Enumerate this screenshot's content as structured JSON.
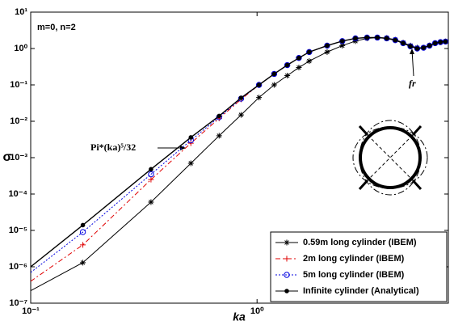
{
  "chart_data": {
    "type": "line",
    "x_label": "ka",
    "y_label": "σ",
    "xscale": "log",
    "yscale": "log",
    "xlim": [
      0.1,
      7
    ],
    "ylim": [
      1e-07,
      10
    ],
    "xticks": [
      {
        "value": 0.1,
        "label": "10⁻¹"
      },
      {
        "value": 1,
        "label": "10⁰"
      }
    ],
    "yticks": [
      {
        "value": 1e-07,
        "label": "10⁻⁷"
      },
      {
        "value": 1e-06,
        "label": "10⁻⁶"
      },
      {
        "value": 1e-05,
        "label": "10⁻⁵"
      },
      {
        "value": 0.0001,
        "label": "10⁻⁴"
      },
      {
        "value": 0.001,
        "label": "10⁻³"
      },
      {
        "value": 0.01,
        "label": "10⁻²"
      },
      {
        "value": 0.1,
        "label": "10⁻¹"
      },
      {
        "value": 1,
        "label": "10⁰"
      },
      {
        "value": 10,
        "label": "10¹"
      }
    ],
    "legend": "lower right",
    "x": [
      0.1,
      0.17,
      0.34,
      0.51,
      0.68,
      0.85,
      1.02,
      1.19,
      1.36,
      1.53,
      1.7,
      2.04,
      2.38,
      2.72,
      3.06,
      3.4,
      3.74,
      4.08,
      4.42,
      4.76,
      5.1,
      5.44,
      5.78,
      6.12,
      6.46,
      6.8
    ],
    "series": [
      {
        "name": "0.59m long cylinder (IBEM)",
        "color": "#000000",
        "marker": "asterisk",
        "line_style": "solid",
        "values": [
          2.2e-07,
          1.3e-06,
          6e-05,
          0.0007,
          0.004,
          0.015,
          0.045,
          0.1,
          0.18,
          0.3,
          0.45,
          0.8,
          1.2,
          1.6,
          1.9,
          2.0,
          1.95,
          1.75,
          1.45,
          1.2,
          1.05,
          1.05,
          1.2,
          1.4,
          1.5,
          1.55
        ]
      },
      {
        "name": "2m long cylinder (IBEM)",
        "color": "#e00000",
        "marker": "plus",
        "line_style": "dashdot",
        "values": [
          4e-07,
          4e-06,
          0.00025,
          0.0025,
          0.012,
          0.04,
          0.1,
          0.2,
          0.35,
          0.55,
          0.8,
          1.2,
          1.6,
          1.9,
          2.0,
          2.0,
          1.9,
          1.7,
          1.4,
          1.15,
          1.0,
          1.05,
          1.2,
          1.4,
          1.5,
          1.55
        ]
      },
      {
        "name": "5m long cylinder (IBEM)",
        "color": "#0000e0",
        "marker": "circle",
        "line_style": "dotted",
        "values": [
          7e-07,
          9e-06,
          0.00035,
          0.003,
          0.013,
          0.042,
          0.1,
          0.2,
          0.35,
          0.55,
          0.8,
          1.2,
          1.6,
          1.9,
          2.0,
          2.0,
          1.9,
          1.7,
          1.4,
          1.15,
          1.0,
          1.05,
          1.2,
          1.4,
          1.5,
          1.55
        ]
      },
      {
        "name": "Infinite cylinder (Analytical)",
        "color": "#000000",
        "marker": "dot",
        "line_style": "solid",
        "values": [
          1e-06,
          1.4e-05,
          0.00048,
          0.0036,
          0.014,
          0.044,
          0.1,
          0.2,
          0.35,
          0.55,
          0.8,
          1.2,
          1.6,
          1.9,
          2.0,
          2.0,
          1.9,
          1.7,
          1.4,
          1.15,
          1.0,
          1.05,
          1.2,
          1.4,
          1.5,
          1.55
        ]
      }
    ],
    "annotations": [
      "m=0, n=2",
      "Pi*(ka)⁵/32",
      "fr"
    ]
  }
}
